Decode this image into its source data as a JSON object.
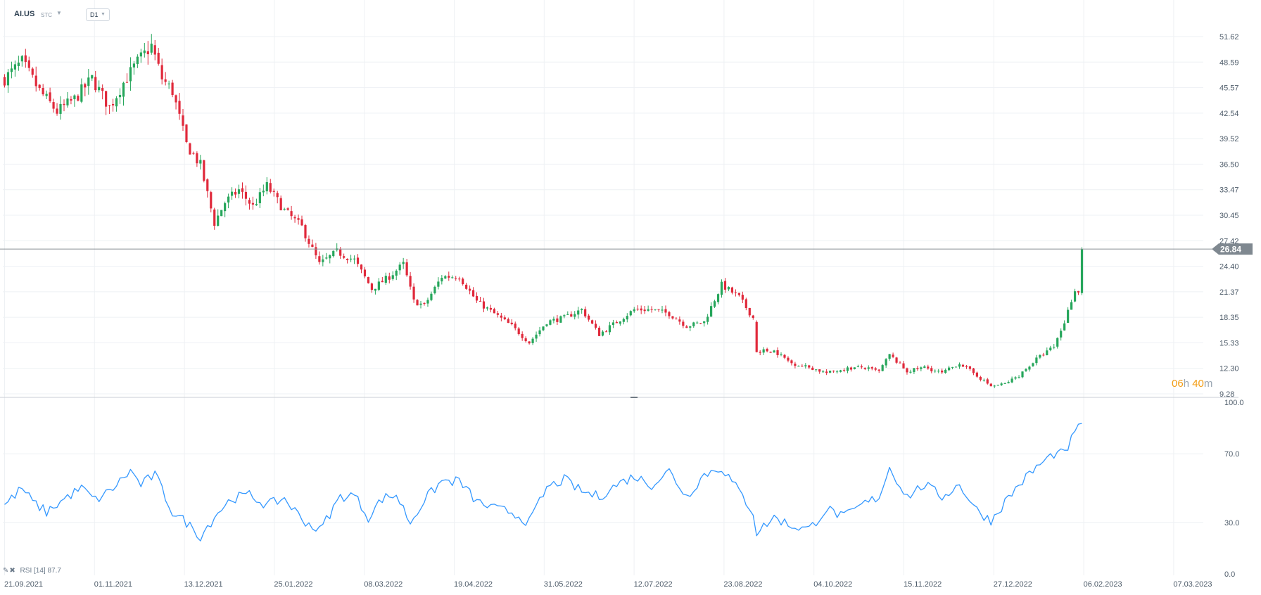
{
  "header": {
    "symbol": "AI.US",
    "type": "STC",
    "timeframe": "D1"
  },
  "timer": {
    "hours": "06",
    "h": "h",
    "minutes": "40",
    "m": "m"
  },
  "indicator": {
    "icons": "✎✖",
    "name": "RSI",
    "period": "[14]",
    "value": "87.7"
  },
  "price": {
    "current": "26.84"
  },
  "colors": {
    "up": "#26a65b",
    "down": "#e0293b",
    "rsi": "#3498ff",
    "price_line": "#8a9096",
    "grid": "#eef1f4",
    "label_bg": "#7f8890"
  },
  "chart_data": [
    {
      "type": "candlestick",
      "symbol": "AI.US",
      "ylim": [
        9.28,
        52.6
      ],
      "y_ticks": [
        "51.62",
        "48.59",
        "45.57",
        "42.54",
        "39.52",
        "36.50",
        "33.47",
        "30.45",
        "27.42",
        "24.40",
        "21.37",
        "18.35",
        "15.33",
        "12.30",
        "9.28"
      ],
      "x_ticks": [
        "21.09.2021",
        "01.11.2021",
        "13.12.2021",
        "25.01.2022",
        "08.03.2022",
        "19.04.2022",
        "31.05.2022",
        "12.07.2022",
        "23.08.2022",
        "04.10.2022",
        "15.11.2022",
        "27.12.2022",
        "06.02.2023",
        "07.03.2023"
      ],
      "current_price": 26.84,
      "close_anchors": [
        [
          0,
          47.5
        ],
        [
          5,
          49.5
        ],
        [
          10,
          46.0
        ],
        [
          15,
          43.5
        ],
        [
          20,
          45.0
        ],
        [
          25,
          47.5
        ],
        [
          30,
          44.0
        ],
        [
          34,
          47.0
        ],
        [
          38,
          49.5
        ],
        [
          42,
          51.5
        ],
        [
          45,
          47.5
        ],
        [
          48,
          46.0
        ],
        [
          52,
          39.5
        ],
        [
          56,
          37.0
        ],
        [
          60,
          30.0
        ],
        [
          63,
          32.5
        ],
        [
          67,
          34.0
        ],
        [
          71,
          32.0
        ],
        [
          75,
          34.5
        ],
        [
          80,
          31.5
        ],
        [
          85,
          29.5
        ],
        [
          90,
          25.0
        ],
        [
          95,
          26.5
        ],
        [
          100,
          25.5
        ],
        [
          105,
          22.0
        ],
        [
          110,
          23.5
        ],
        [
          114,
          25.0
        ],
        [
          117,
          20.5
        ],
        [
          120,
          20.0
        ],
        [
          125,
          23.5
        ],
        [
          130,
          23.5
        ],
        [
          135,
          20.5
        ],
        [
          140,
          19.0
        ],
        [
          145,
          17.5
        ],
        [
          150,
          15.5
        ],
        [
          155,
          18.0
        ],
        [
          160,
          18.5
        ],
        [
          165,
          19.5
        ],
        [
          170,
          16.5
        ],
        [
          175,
          18.0
        ],
        [
          180,
          19.5
        ],
        [
          185,
          19.5
        ],
        [
          190,
          19.0
        ],
        [
          195,
          17.5
        ],
        [
          200,
          18.0
        ],
        [
          205,
          22.5
        ],
        [
          210,
          21.0
        ],
        [
          214,
          18.5
        ],
        [
          215,
          14.5
        ],
        [
          220,
          14.5
        ],
        [
          225,
          13.0
        ],
        [
          230,
          12.5
        ],
        [
          235,
          11.8
        ],
        [
          240,
          12.3
        ],
        [
          245,
          12.5
        ],
        [
          250,
          12.0
        ],
        [
          253,
          14.0
        ],
        [
          258,
          12.0
        ],
        [
          263,
          12.5
        ],
        [
          268,
          11.8
        ],
        [
          273,
          13.0
        ],
        [
          278,
          11.5
        ],
        [
          282,
          10.2
        ],
        [
          286,
          10.5
        ],
        [
          290,
          11.5
        ],
        [
          295,
          13.5
        ],
        [
          300,
          15.0
        ],
        [
          303,
          18.0
        ],
        [
          306,
          22.0
        ],
        [
          307,
          21.5
        ],
        [
          308,
          26.84
        ]
      ],
      "candle_count": 309
    },
    {
      "type": "line",
      "name": "RSI",
      "period": 14,
      "ylim": [
        0,
        100
      ],
      "y_ticks": [
        "100.0",
        "70.0",
        "30.0",
        "0.0"
      ],
      "last_value": 87.7,
      "value_anchors": [
        [
          0,
          40
        ],
        [
          5,
          50
        ],
        [
          8,
          42
        ],
        [
          12,
          36
        ],
        [
          18,
          45
        ],
        [
          22,
          50
        ],
        [
          26,
          43
        ],
        [
          30,
          48
        ],
        [
          36,
          60
        ],
        [
          39,
          52
        ],
        [
          43,
          58
        ],
        [
          48,
          36
        ],
        [
          52,
          30
        ],
        [
          56,
          22
        ],
        [
          61,
          36
        ],
        [
          65,
          44
        ],
        [
          70,
          46
        ],
        [
          75,
          40
        ],
        [
          80,
          44
        ],
        [
          85,
          32
        ],
        [
          90,
          25
        ],
        [
          96,
          45
        ],
        [
          100,
          46
        ],
        [
          104,
          33
        ],
        [
          108,
          44
        ],
        [
          112,
          46
        ],
        [
          116,
          30
        ],
        [
          120,
          43
        ],
        [
          125,
          54
        ],
        [
          130,
          54
        ],
        [
          135,
          42
        ],
        [
          140,
          38
        ],
        [
          145,
          36
        ],
        [
          150,
          30
        ],
        [
          155,
          50
        ],
        [
          160,
          55
        ],
        [
          165,
          48
        ],
        [
          170,
          45
        ],
        [
          175,
          52
        ],
        [
          180,
          57
        ],
        [
          185,
          52
        ],
        [
          190,
          60
        ],
        [
          195,
          45
        ],
        [
          200,
          58
        ],
        [
          205,
          62
        ],
        [
          210,
          48
        ],
        [
          214,
          36
        ],
        [
          215,
          24
        ],
        [
          220,
          33
        ],
        [
          225,
          28
        ],
        [
          230,
          26
        ],
        [
          235,
          38
        ],
        [
          240,
          33
        ],
        [
          245,
          40
        ],
        [
          250,
          45
        ],
        [
          253,
          62
        ],
        [
          258,
          45
        ],
        [
          263,
          52
        ],
        [
          268,
          45
        ],
        [
          273,
          52
        ],
        [
          278,
          37
        ],
        [
          282,
          31
        ],
        [
          286,
          42
        ],
        [
          290,
          52
        ],
        [
          295,
          62
        ],
        [
          300,
          70
        ],
        [
          303,
          70
        ],
        [
          306,
          82
        ],
        [
          308,
          87.7
        ]
      ]
    }
  ]
}
